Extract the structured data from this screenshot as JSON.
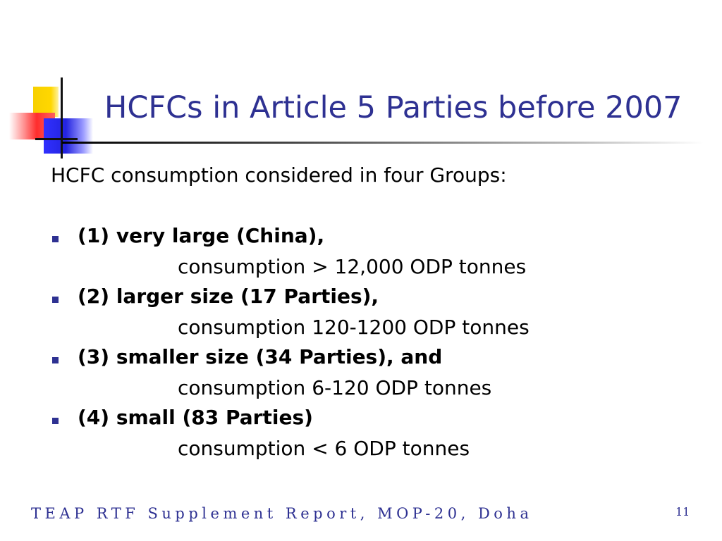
{
  "slide": {
    "title": "HCFCs in Article 5 Parties before 2007",
    "intro": "HCFC consumption considered in four Groups:",
    "groups": [
      {
        "heading": "(1) very large (China),",
        "detail": "consumption > 12,000 ODP tonnes"
      },
      {
        "heading": "(2) larger size (17 Parties),",
        "detail": "consumption 120-1200 ODP tonnes"
      },
      {
        "heading": "(3) smaller size (34 Parties), and",
        "detail": "consumption 6-120 ODP tonnes"
      },
      {
        "heading": "(4) small (83 Parties)",
        "detail": "consumption < 6 ODP tonnes"
      }
    ],
    "footer": "TEAP RTF Supplement Report, MOP-20, Doha",
    "page_number": "11"
  },
  "colors": {
    "title": "#2e3192",
    "bullet": "#2e3192",
    "footer": "#2e3192"
  }
}
